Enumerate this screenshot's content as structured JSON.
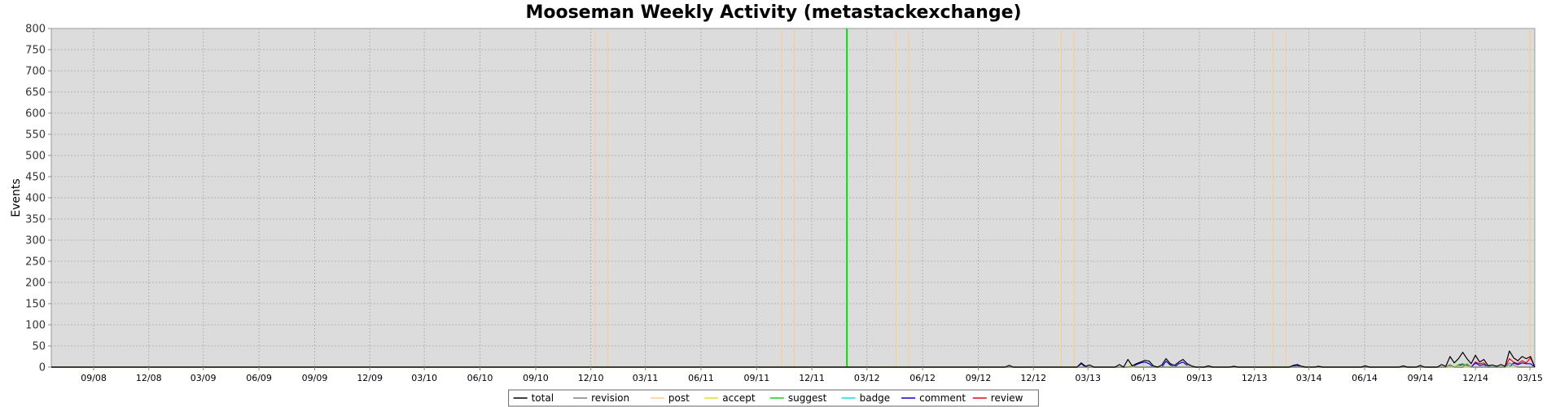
{
  "chart_data": {
    "type": "line",
    "title": "Mooseman Weekly Activity (metastackexchange)",
    "ylabel": "Events",
    "xlabel": "",
    "ylim": [
      0,
      800
    ],
    "yticks": [
      0,
      50,
      100,
      150,
      200,
      250,
      300,
      350,
      400,
      450,
      500,
      550,
      600,
      650,
      700,
      750,
      800
    ],
    "xlim": [
      "2008-06-23",
      "2015-03-09"
    ],
    "xticks": [
      {
        "date": "2008-09-01",
        "label": "09/08"
      },
      {
        "date": "2008-12-01",
        "label": "12/08"
      },
      {
        "date": "2009-03-01",
        "label": "03/09"
      },
      {
        "date": "2009-06-01",
        "label": "06/09"
      },
      {
        "date": "2009-09-01",
        "label": "09/09"
      },
      {
        "date": "2009-12-01",
        "label": "12/09"
      },
      {
        "date": "2010-03-01",
        "label": "03/10"
      },
      {
        "date": "2010-06-01",
        "label": "06/10"
      },
      {
        "date": "2010-09-01",
        "label": "09/10"
      },
      {
        "date": "2010-12-01",
        "label": "12/10"
      },
      {
        "date": "2011-03-01",
        "label": "03/11"
      },
      {
        "date": "2011-06-01",
        "label": "06/11"
      },
      {
        "date": "2011-09-01",
        "label": "09/11"
      },
      {
        "date": "2011-12-01",
        "label": "12/11"
      },
      {
        "date": "2012-03-01",
        "label": "03/12"
      },
      {
        "date": "2012-06-01",
        "label": "06/12"
      },
      {
        "date": "2012-09-01",
        "label": "09/12"
      },
      {
        "date": "2012-12-01",
        "label": "12/12"
      },
      {
        "date": "2013-03-01",
        "label": "03/13"
      },
      {
        "date": "2013-06-01",
        "label": "06/13"
      },
      {
        "date": "2013-09-01",
        "label": "09/13"
      },
      {
        "date": "2013-12-01",
        "label": "12/13"
      },
      {
        "date": "2014-03-01",
        "label": "03/14"
      },
      {
        "date": "2014-06-01",
        "label": "06/14"
      },
      {
        "date": "2014-09-01",
        "label": "09/14"
      },
      {
        "date": "2014-12-01",
        "label": "12/14"
      },
      {
        "date": "2015-03-01",
        "label": "03/15"
      }
    ],
    "grid": true,
    "legend_position": "bottom-center",
    "event_markers": [
      {
        "date": "2010-12-08",
        "color": "#ffc88c"
      },
      {
        "date": "2010-12-29",
        "color": "#ffc88c"
      },
      {
        "date": "2011-10-12",
        "color": "#ffc88c"
      },
      {
        "date": "2011-11-02",
        "color": "#ffc88c"
      },
      {
        "date": "2012-01-28",
        "color": "#00e000"
      },
      {
        "date": "2012-04-18",
        "color": "#ffc88c"
      },
      {
        "date": "2012-05-09",
        "color": "#ffc88c"
      },
      {
        "date": "2013-01-16",
        "color": "#ffc88c"
      },
      {
        "date": "2013-02-06",
        "color": "#ffc88c"
      },
      {
        "date": "2014-01-01",
        "color": "#ffc88c"
      },
      {
        "date": "2014-01-22",
        "color": "#ffc88c"
      },
      {
        "date": "2015-03-01",
        "color": "#ffc88c"
      }
    ],
    "series": [
      {
        "name": "total",
        "color": "#000000",
        "points": [
          [
            "2008-06-23",
            0
          ],
          [
            "2012-10-15",
            0
          ],
          [
            "2012-10-22",
            4
          ],
          [
            "2012-10-29",
            0
          ],
          [
            "2013-02-11",
            0
          ],
          [
            "2013-02-18",
            10
          ],
          [
            "2013-02-25",
            2
          ],
          [
            "2013-03-04",
            5
          ],
          [
            "2013-03-11",
            0
          ],
          [
            "2013-04-15",
            0
          ],
          [
            "2013-04-22",
            6
          ],
          [
            "2013-04-29",
            0
          ],
          [
            "2013-05-06",
            18
          ],
          [
            "2013-05-13",
            3
          ],
          [
            "2013-05-20",
            8
          ],
          [
            "2013-05-27",
            12
          ],
          [
            "2013-06-03",
            16
          ],
          [
            "2013-06-10",
            14
          ],
          [
            "2013-06-17",
            3
          ],
          [
            "2013-06-24",
            0
          ],
          [
            "2013-07-01",
            5
          ],
          [
            "2013-07-08",
            20
          ],
          [
            "2013-07-15",
            8
          ],
          [
            "2013-07-22",
            4
          ],
          [
            "2013-07-29",
            12
          ],
          [
            "2013-08-05",
            18
          ],
          [
            "2013-08-12",
            8
          ],
          [
            "2013-08-19",
            3
          ],
          [
            "2013-08-26",
            0
          ],
          [
            "2013-09-09",
            0
          ],
          [
            "2013-09-16",
            3
          ],
          [
            "2013-09-23",
            0
          ],
          [
            "2013-10-21",
            0
          ],
          [
            "2013-10-28",
            2
          ],
          [
            "2013-11-04",
            0
          ],
          [
            "2014-01-27",
            0
          ],
          [
            "2014-02-03",
            4
          ],
          [
            "2014-02-10",
            6
          ],
          [
            "2014-02-17",
            2
          ],
          [
            "2014-02-24",
            0
          ],
          [
            "2014-03-10",
            0
          ],
          [
            "2014-03-17",
            2
          ],
          [
            "2014-03-24",
            0
          ],
          [
            "2014-05-26",
            0
          ],
          [
            "2014-06-02",
            3
          ],
          [
            "2014-06-09",
            0
          ],
          [
            "2014-07-28",
            0
          ],
          [
            "2014-08-04",
            3
          ],
          [
            "2014-08-11",
            0
          ],
          [
            "2014-08-25",
            0
          ],
          [
            "2014-09-01",
            4
          ],
          [
            "2014-09-08",
            0
          ],
          [
            "2014-09-29",
            0
          ],
          [
            "2014-10-06",
            6
          ],
          [
            "2014-10-13",
            2
          ],
          [
            "2014-10-20",
            25
          ],
          [
            "2014-10-27",
            10
          ],
          [
            "2014-11-03",
            20
          ],
          [
            "2014-11-10",
            35
          ],
          [
            "2014-11-17",
            20
          ],
          [
            "2014-11-24",
            8
          ],
          [
            "2014-12-01",
            28
          ],
          [
            "2014-12-08",
            12
          ],
          [
            "2014-12-15",
            18
          ],
          [
            "2014-12-22",
            3
          ],
          [
            "2014-12-29",
            5
          ],
          [
            "2015-01-05",
            2
          ],
          [
            "2015-01-12",
            6
          ],
          [
            "2015-01-19",
            2
          ],
          [
            "2015-01-26",
            38
          ],
          [
            "2015-02-02",
            22
          ],
          [
            "2015-02-09",
            15
          ],
          [
            "2015-02-16",
            25
          ],
          [
            "2015-02-23",
            20
          ],
          [
            "2015-03-02",
            25
          ],
          [
            "2015-03-09",
            0
          ]
        ]
      },
      {
        "name": "revision",
        "color": "#808080",
        "points": [
          [
            "2008-06-23",
            0
          ],
          [
            "2013-05-06",
            0
          ],
          [
            "2013-05-13",
            3
          ],
          [
            "2013-05-20",
            0
          ],
          [
            "2014-10-13",
            0
          ],
          [
            "2014-10-20",
            6
          ],
          [
            "2014-10-27",
            0
          ],
          [
            "2014-11-10",
            0
          ],
          [
            "2014-11-17",
            8
          ],
          [
            "2014-11-24",
            0
          ],
          [
            "2015-01-19",
            0
          ],
          [
            "2015-01-26",
            10
          ],
          [
            "2015-02-02",
            5
          ],
          [
            "2015-02-09",
            0
          ],
          [
            "2015-03-09",
            0
          ]
        ]
      },
      {
        "name": "post",
        "color": "#ffc88c",
        "points": [
          [
            "2008-06-23",
            0
          ],
          [
            "2013-05-06",
            0
          ],
          [
            "2013-05-13",
            4
          ],
          [
            "2013-05-20",
            0
          ],
          [
            "2013-08-05",
            0
          ],
          [
            "2013-08-12",
            3
          ],
          [
            "2013-08-19",
            0
          ],
          [
            "2014-11-03",
            0
          ],
          [
            "2014-11-10",
            4
          ],
          [
            "2014-11-17",
            0
          ],
          [
            "2015-03-09",
            0
          ]
        ]
      },
      {
        "name": "accept",
        "color": "#e6e600",
        "points": [
          [
            "2008-06-23",
            0
          ],
          [
            "2013-07-08",
            0
          ],
          [
            "2013-07-15",
            2
          ],
          [
            "2013-07-22",
            0
          ],
          [
            "2014-10-27",
            0
          ],
          [
            "2014-11-03",
            3
          ],
          [
            "2014-11-10",
            0
          ],
          [
            "2015-03-09",
            0
          ]
        ]
      },
      {
        "name": "suggest",
        "color": "#00e000",
        "points": [
          [
            "2008-06-23",
            0
          ],
          [
            "2014-10-13",
            0
          ],
          [
            "2014-10-20",
            3
          ],
          [
            "2014-10-27",
            0
          ],
          [
            "2014-11-03",
            6
          ],
          [
            "2014-11-10",
            8
          ],
          [
            "2014-11-17",
            3
          ],
          [
            "2014-11-24",
            0
          ],
          [
            "2015-03-09",
            0
          ]
        ]
      },
      {
        "name": "badge",
        "color": "#00e5ee",
        "points": [
          [
            "2008-06-23",
            0
          ],
          [
            "2014-12-15",
            0
          ],
          [
            "2014-12-22",
            3
          ],
          [
            "2014-12-29",
            0
          ],
          [
            "2015-01-19",
            0
          ],
          [
            "2015-01-26",
            5
          ],
          [
            "2015-02-02",
            0
          ],
          [
            "2015-03-09",
            0
          ]
        ]
      },
      {
        "name": "comment",
        "color": "#0000ff",
        "points": [
          [
            "2008-06-23",
            0
          ],
          [
            "2013-02-11",
            0
          ],
          [
            "2013-02-18",
            8
          ],
          [
            "2013-02-25",
            0
          ],
          [
            "2013-05-13",
            0
          ],
          [
            "2013-05-20",
            6
          ],
          [
            "2013-05-27",
            10
          ],
          [
            "2013-06-03",
            12
          ],
          [
            "2013-06-10",
            8
          ],
          [
            "2013-06-17",
            0
          ],
          [
            "2013-07-01",
            0
          ],
          [
            "2013-07-08",
            14
          ],
          [
            "2013-07-15",
            5
          ],
          [
            "2013-07-22",
            0
          ],
          [
            "2013-07-29",
            8
          ],
          [
            "2013-08-05",
            12
          ],
          [
            "2013-08-12",
            4
          ],
          [
            "2013-08-19",
            0
          ],
          [
            "2014-01-27",
            0
          ],
          [
            "2014-02-03",
            3
          ],
          [
            "2014-02-10",
            4
          ],
          [
            "2014-02-17",
            0
          ],
          [
            "2014-10-27",
            0
          ],
          [
            "2014-11-03",
            4
          ],
          [
            "2014-11-10",
            6
          ],
          [
            "2014-11-17",
            4
          ],
          [
            "2014-11-24",
            0
          ],
          [
            "2014-12-01",
            10
          ],
          [
            "2014-12-08",
            4
          ],
          [
            "2014-12-15",
            6
          ],
          [
            "2014-12-22",
            0
          ],
          [
            "2015-01-26",
            0
          ],
          [
            "2015-02-02",
            10
          ],
          [
            "2015-02-09",
            6
          ],
          [
            "2015-02-16",
            10
          ],
          [
            "2015-02-23",
            8
          ],
          [
            "2015-03-02",
            8
          ],
          [
            "2015-03-09",
            0
          ]
        ]
      },
      {
        "name": "review",
        "color": "#ff0000",
        "points": [
          [
            "2008-06-23",
            0
          ],
          [
            "2014-11-24",
            0
          ],
          [
            "2014-12-01",
            12
          ],
          [
            "2014-12-08",
            8
          ],
          [
            "2014-12-15",
            10
          ],
          [
            "2014-12-22",
            0
          ],
          [
            "2015-01-12",
            0
          ],
          [
            "2015-01-19",
            0
          ],
          [
            "2015-01-26",
            20
          ],
          [
            "2015-02-02",
            12
          ],
          [
            "2015-02-09",
            8
          ],
          [
            "2015-02-16",
            15
          ],
          [
            "2015-02-23",
            10
          ],
          [
            "2015-03-02",
            22
          ],
          [
            "2015-03-09",
            0
          ]
        ]
      }
    ]
  }
}
